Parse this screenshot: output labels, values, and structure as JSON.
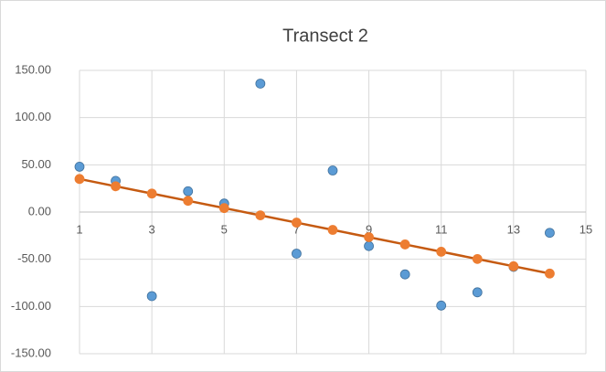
{
  "chart_data": {
    "type": "scatter",
    "title": "Transect 2",
    "x": [
      1,
      2,
      3,
      4,
      5,
      6,
      7,
      8,
      9,
      10,
      11,
      12,
      13,
      14
    ],
    "series": [
      {
        "color": "#5b9bd5",
        "line": false,
        "values": [
          48,
          33,
          -89,
          22,
          9,
          136,
          -44,
          44,
          -36,
          -66,
          -99,
          -85,
          -58,
          -22
        ]
      },
      {
        "color": "#ed7d31",
        "line": true,
        "line_color": "#c55a11",
        "values": [
          35,
          27.3,
          19.6,
          11.9,
          4.2,
          -3.5,
          -11.2,
          -18.9,
          -26.6,
          -34.3,
          -42.0,
          -49.7,
          -57.4,
          -65.1
        ]
      }
    ],
    "xlim": [
      1,
      15
    ],
    "xticks": [
      1,
      3,
      5,
      7,
      9,
      11,
      13,
      15
    ],
    "ylim": [
      -150,
      150
    ],
    "yticks": [
      {
        "value": -150,
        "label": "-150.00"
      },
      {
        "value": -100,
        "label": "-100.00"
      },
      {
        "value": -50,
        "label": "-50.00"
      },
      {
        "value": 0,
        "label": "0.00"
      },
      {
        "value": 50,
        "label": "50.00"
      },
      {
        "value": 100,
        "label": "100.00"
      },
      {
        "value": 150,
        "label": "150.00"
      }
    ],
    "grid": true
  }
}
